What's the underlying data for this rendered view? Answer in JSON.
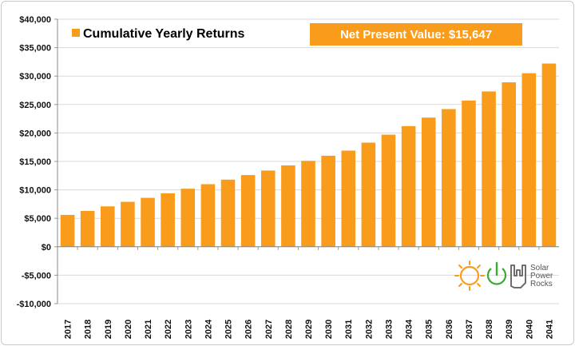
{
  "chart_data": {
    "type": "bar",
    "categories": [
      "2017",
      "2018",
      "2019",
      "2020",
      "2021",
      "2022",
      "2023",
      "2024",
      "2025",
      "2026",
      "2027",
      "2028",
      "2029",
      "2030",
      "2031",
      "2032",
      "2033",
      "2034",
      "2035",
      "2036",
      "2037",
      "2038",
      "2039",
      "2040",
      "2041"
    ],
    "series": [
      {
        "name": "Cumulative Yearly Returns",
        "values": [
          5600,
          6300,
          7100,
          7900,
          8600,
          9400,
          10200,
          11000,
          11800,
          12600,
          13400,
          14300,
          15100,
          16000,
          16900,
          18300,
          19700,
          21200,
          22700,
          24200,
          25700,
          27300,
          28900,
          30500,
          32200
        ],
        "color": "#f99c1c"
      }
    ],
    "ylim": [
      -10000,
      40000
    ],
    "yticks": [
      -10000,
      -5000,
      0,
      5000,
      10000,
      15000,
      20000,
      25000,
      30000,
      35000,
      40000
    ],
    "ytick_labels": [
      "-$10,000",
      "-$5,000",
      "$0",
      "$5,000",
      "$10,000",
      "$15,000",
      "$20,000",
      "$25,000",
      "$30,000",
      "$35,000",
      "$40,000"
    ],
    "grid": true,
    "legend": {
      "placement": "top-left",
      "label": "Cumulative Yearly Returns"
    },
    "annotation": {
      "text": "Net Present Value: $15,647",
      "color": "#f99c1c"
    }
  },
  "logo": {
    "line1": "Solar",
    "line2": "Power",
    "line3": "Rocks",
    "sun_color": "#f99c1c",
    "power_color": "#3aaa35",
    "hand_color": "#6d6e70"
  }
}
